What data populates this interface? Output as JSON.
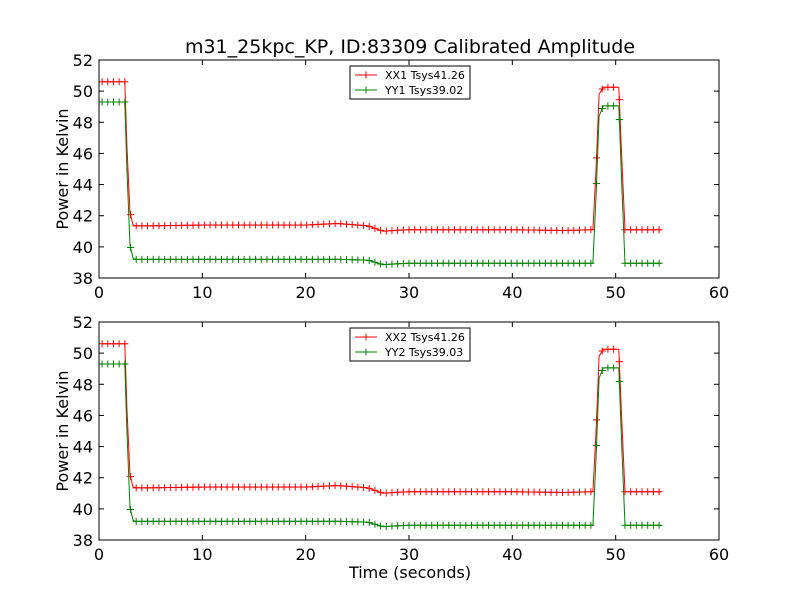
{
  "chart_data": [
    {
      "type": "line",
      "title": "m31_25kpc_KP, ID:83309 Calibrated Amplitude",
      "xlabel": "",
      "ylabel": "Power in Kelvin",
      "xlim": [
        0,
        60
      ],
      "ylim": [
        38,
        52
      ],
      "xticks": [
        0,
        10,
        20,
        30,
        40,
        50,
        60
      ],
      "yticks": [
        38,
        40,
        42,
        44,
        46,
        48,
        50,
        52
      ],
      "legend_position": "top-center",
      "series": [
        {
          "name": "XX1 Tsys41.26",
          "color": "#ff0000",
          "x": [
            0.3,
            2.5,
            2.7,
            3.0,
            3.3,
            3.6,
            5,
            10,
            15,
            20,
            23,
            26,
            27.5,
            28.5,
            30,
            35,
            40,
            45,
            47.8,
            48.1,
            48.4,
            48.8,
            50.3,
            50.6,
            50.9,
            54.4
          ],
          "y": [
            50.6,
            50.6,
            46.5,
            42.2,
            41.4,
            41.35,
            41.35,
            41.4,
            41.4,
            41.4,
            41.5,
            41.35,
            41.0,
            41.05,
            41.1,
            41.1,
            41.1,
            41.05,
            41.1,
            44.9,
            49.8,
            50.25,
            50.25,
            45.5,
            41.1,
            41.1
          ]
        },
        {
          "name": "YY1 Tsys39.02",
          "color": "#008000",
          "x": [
            0.3,
            2.5,
            2.7,
            3.0,
            3.3,
            3.6,
            5,
            10,
            15,
            20,
            23,
            26,
            27.5,
            28.5,
            30,
            35,
            40,
            45,
            47.8,
            48.1,
            48.4,
            48.8,
            50.3,
            50.6,
            50.9,
            54.4
          ],
          "y": [
            49.3,
            49.3,
            45.0,
            40.1,
            39.25,
            39.2,
            39.2,
            39.2,
            39.2,
            39.2,
            39.2,
            39.15,
            38.85,
            38.9,
            38.95,
            38.95,
            38.95,
            38.95,
            38.95,
            43.2,
            48.4,
            49.05,
            49.05,
            43.8,
            38.95,
            38.95
          ]
        }
      ]
    },
    {
      "type": "line",
      "title": "",
      "xlabel": "Time (seconds)",
      "ylabel": "Power in Kelvin",
      "xlim": [
        0,
        60
      ],
      "ylim": [
        38,
        52
      ],
      "xticks": [
        0,
        10,
        20,
        30,
        40,
        50,
        60
      ],
      "yticks": [
        38,
        40,
        42,
        44,
        46,
        48,
        50,
        52
      ],
      "legend_position": "top-center",
      "series": [
        {
          "name": "XX2 Tsys41.26",
          "color": "#ff0000",
          "x": [
            0.3,
            2.5,
            2.7,
            3.0,
            3.3,
            3.6,
            5,
            10,
            15,
            20,
            23,
            26,
            27.5,
            28.5,
            30,
            35,
            40,
            45,
            47.8,
            48.1,
            48.4,
            48.8,
            50.3,
            50.6,
            50.9,
            54.4
          ],
          "y": [
            50.6,
            50.6,
            46.5,
            42.2,
            41.4,
            41.35,
            41.35,
            41.4,
            41.4,
            41.4,
            41.5,
            41.35,
            41.0,
            41.05,
            41.1,
            41.1,
            41.1,
            41.05,
            41.1,
            44.9,
            49.8,
            50.25,
            50.25,
            45.5,
            41.1,
            41.1
          ]
        },
        {
          "name": "YY2 Tsys39.03",
          "color": "#008000",
          "x": [
            0.3,
            2.5,
            2.7,
            3.0,
            3.3,
            3.6,
            5,
            10,
            15,
            20,
            23,
            26,
            27.5,
            28.5,
            30,
            35,
            40,
            45,
            47.8,
            48.1,
            48.4,
            48.8,
            50.3,
            50.6,
            50.9,
            54.4
          ],
          "y": [
            49.3,
            49.3,
            45.0,
            40.1,
            39.25,
            39.2,
            39.2,
            39.2,
            39.2,
            39.2,
            39.2,
            39.15,
            38.85,
            38.9,
            38.95,
            38.95,
            38.95,
            38.95,
            38.95,
            43.2,
            48.4,
            49.05,
            49.05,
            43.8,
            38.95,
            38.95
          ]
        }
      ]
    }
  ]
}
